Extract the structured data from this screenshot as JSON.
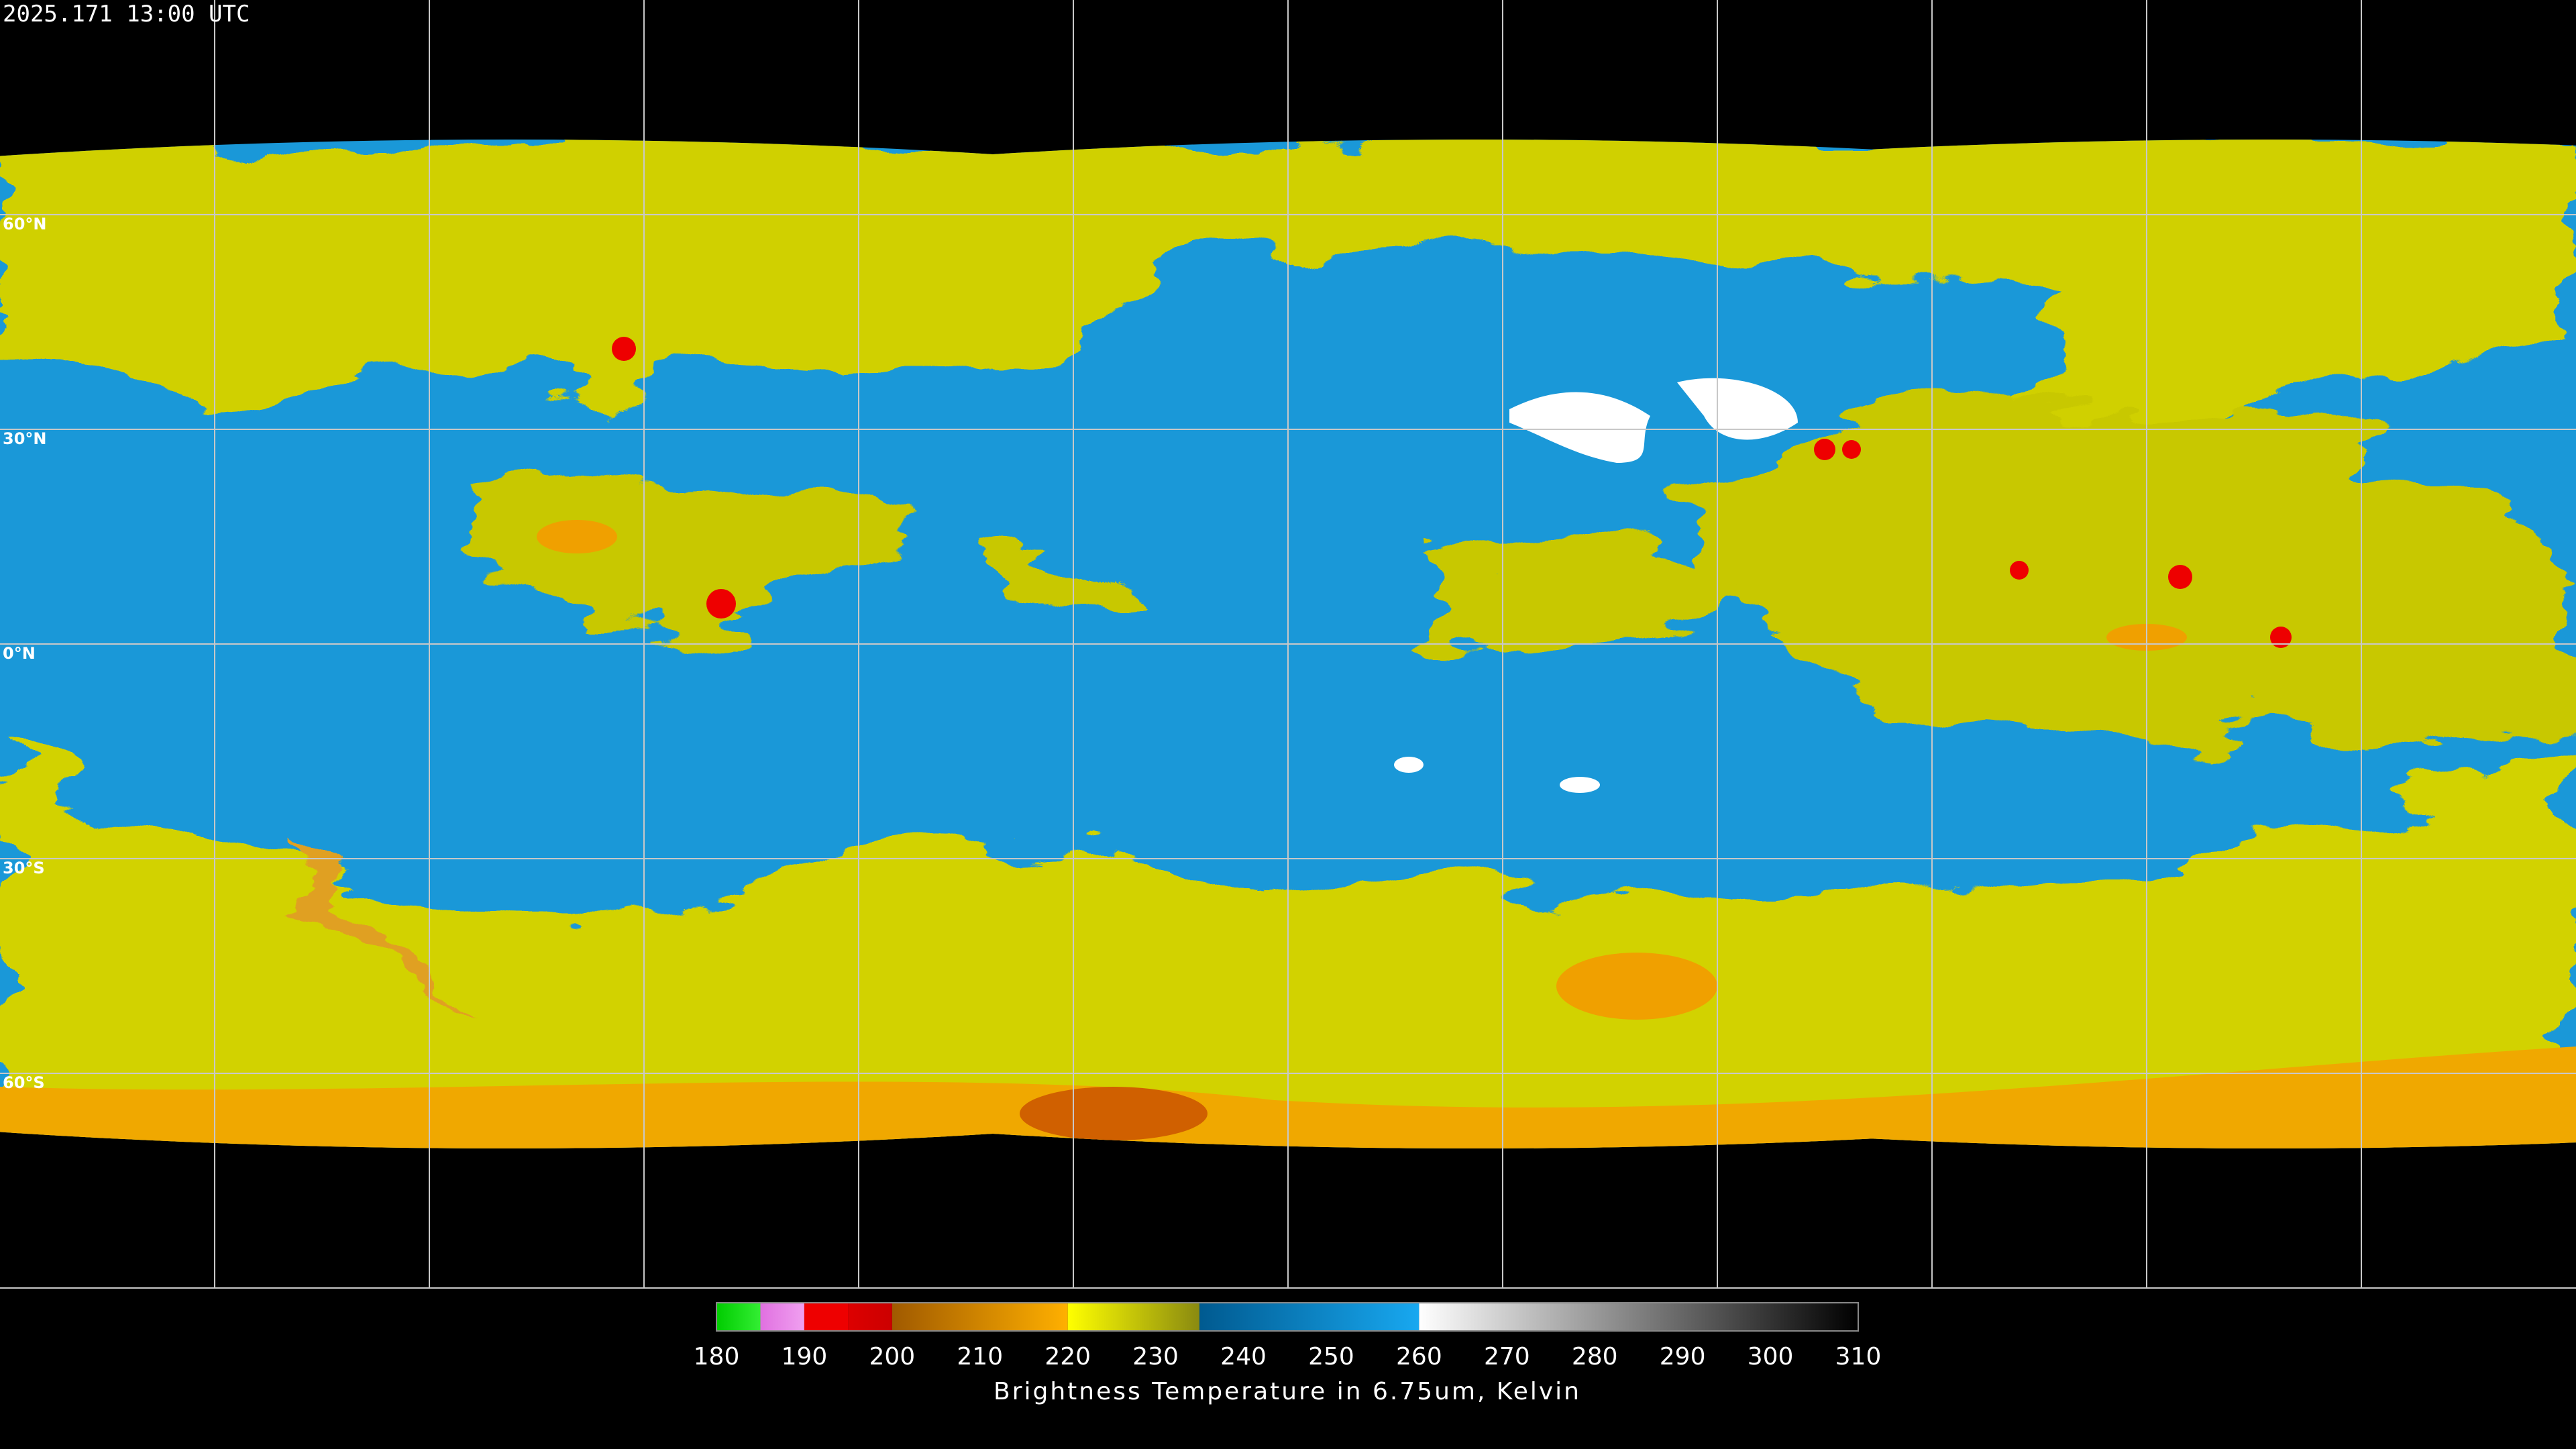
{
  "header": {
    "timestamp": "2025.171 13:00 UTC"
  },
  "latitude_labels": [
    "60°N",
    "30°N",
    "0°N",
    "30°S",
    "60°S"
  ],
  "colorbar": {
    "range": [
      180,
      310
    ],
    "ticks": [
      180,
      190,
      200,
      210,
      220,
      230,
      240,
      250,
      260,
      270,
      280,
      290,
      300,
      310
    ],
    "segments": [
      {
        "from": 180,
        "to": 185,
        "color_start": "#00cc00",
        "color_end": "#33ee33"
      },
      {
        "from": 185,
        "to": 190,
        "color_start": "#e070e0",
        "color_end": "#f0a0f0"
      },
      {
        "from": 190,
        "to": 195,
        "color_start": "#ee0000",
        "color_end": "#ee0000"
      },
      {
        "from": 195,
        "to": 200,
        "color_start": "#dd0000",
        "color_end": "#cc0000"
      },
      {
        "from": 200,
        "to": 220,
        "color_start": "#a05a00",
        "color_end": "#ffb000"
      },
      {
        "from": 220,
        "to": 235,
        "color_start": "#ffff00",
        "color_end": "#8a8a10"
      },
      {
        "from": 235,
        "to": 260,
        "color_start": "#005a90",
        "color_end": "#18a8f0"
      },
      {
        "from": 260,
        "to": 310,
        "color_start": "#ffffff",
        "color_end": "#000000"
      }
    ],
    "label": "Brightness Temperature in 6.75um, Kelvin"
  }
}
